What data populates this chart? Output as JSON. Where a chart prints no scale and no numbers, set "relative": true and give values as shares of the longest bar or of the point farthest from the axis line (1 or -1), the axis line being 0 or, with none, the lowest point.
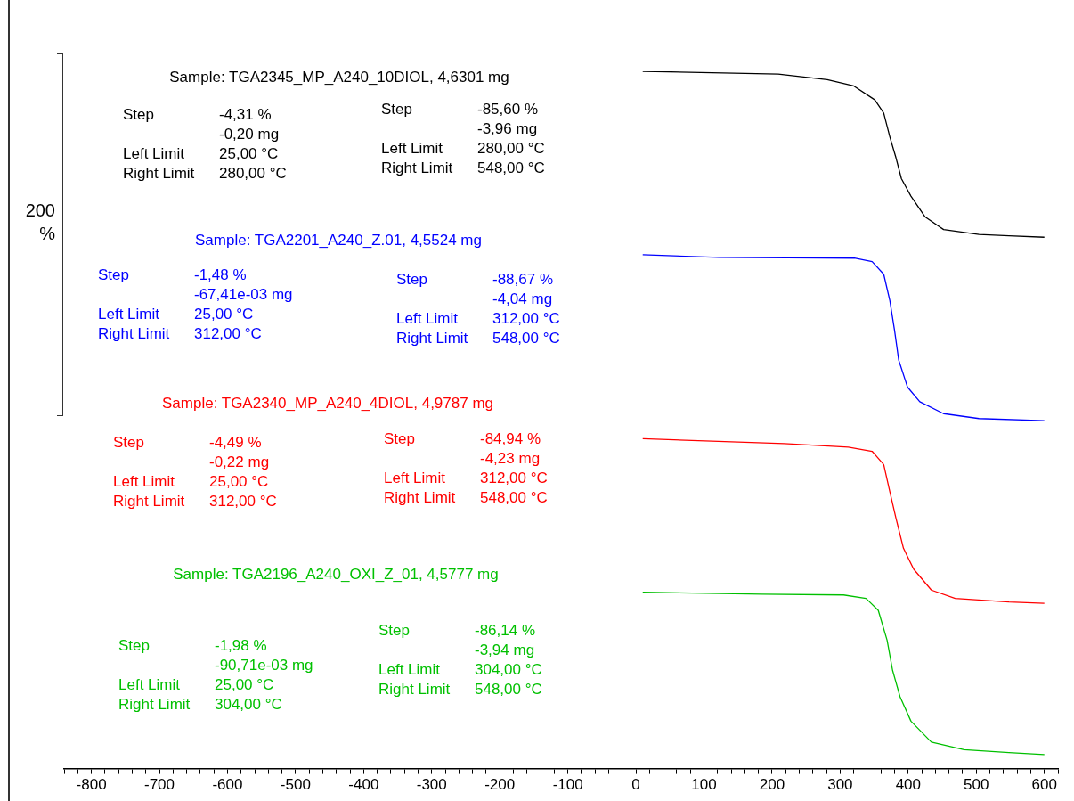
{
  "chart_data": {
    "type": "line",
    "relative": true,
    "grid": false,
    "legend": false,
    "marker": "none",
    "line_style": "solid",
    "xlim": [
      -840,
      620
    ],
    "xticks": [
      {
        "value": -840,
        "label": null
      },
      {
        "value": -820,
        "label": null
      },
      -800,
      {
        "value": -780,
        "label": null
      },
      {
        "value": -760,
        "label": null
      },
      {
        "value": -740,
        "label": null
      },
      {
        "value": -720,
        "label": null
      },
      -700,
      {
        "value": -680,
        "label": null
      },
      {
        "value": -660,
        "label": null
      },
      {
        "value": -640,
        "label": null
      },
      {
        "value": -620,
        "label": null
      },
      -600,
      {
        "value": -580,
        "label": null
      },
      {
        "value": -560,
        "label": null
      },
      {
        "value": -540,
        "label": null
      },
      {
        "value": -520,
        "label": null
      },
      -500,
      {
        "value": -480,
        "label": null
      },
      {
        "value": -460,
        "label": null
      },
      {
        "value": -440,
        "label": null
      },
      {
        "value": -420,
        "label": null
      },
      -400,
      {
        "value": -380,
        "label": null
      },
      {
        "value": -360,
        "label": null
      },
      {
        "value": -340,
        "label": null
      },
      {
        "value": -320,
        "label": null
      },
      -300,
      {
        "value": -280,
        "label": null
      },
      {
        "value": -260,
        "label": null
      },
      {
        "value": -240,
        "label": null
      },
      {
        "value": -220,
        "label": null
      },
      -200,
      {
        "value": -180,
        "label": null
      },
      {
        "value": -160,
        "label": null
      },
      {
        "value": -140,
        "label": null
      },
      {
        "value": -120,
        "label": null
      },
      -100,
      {
        "value": -80,
        "label": null
      },
      {
        "value": -60,
        "label": null
      },
      {
        "value": -40,
        "label": null
      },
      {
        "value": -20,
        "label": null
      },
      0,
      {
        "value": 20,
        "label": null
      },
      {
        "value": 40,
        "label": null
      },
      {
        "value": 60,
        "label": null
      },
      {
        "value": 80,
        "label": null
      },
      100,
      {
        "value": 120,
        "label": null
      },
      {
        "value": 140,
        "label": null
      },
      {
        "value": 160,
        "label": null
      },
      {
        "value": 180,
        "label": null
      },
      200,
      {
        "value": 220,
        "label": null
      },
      {
        "value": 240,
        "label": null
      },
      {
        "value": 260,
        "label": null
      },
      {
        "value": 280,
        "label": null
      },
      300,
      {
        "value": 320,
        "label": null
      },
      {
        "value": 340,
        "label": null
      },
      {
        "value": 360,
        "label": null
      },
      {
        "value": 380,
        "label": null
      },
      400,
      {
        "value": 420,
        "label": null
      },
      {
        "value": 440,
        "label": null
      },
      {
        "value": 460,
        "label": null
      },
      {
        "value": 480,
        "label": null
      },
      500,
      {
        "value": 520,
        "label": null
      },
      {
        "value": 540,
        "label": null
      },
      {
        "value": 560,
        "label": null
      },
      {
        "value": 580,
        "label": null
      },
      600,
      {
        "value": 620,
        "label": null
      }
    ],
    "series": [
      {
        "name": "Sample: TGA2345_MP_A240_10DIOL, 4,6301 mg",
        "color": "#000000",
        "x": [
          10,
          209,
          281,
          320,
          351,
          364,
          373,
          382,
          390,
          404,
          425,
          452,
          504,
          548,
          600
        ],
        "values": [
          1.0,
          0.996,
          0.988,
          0.979,
          0.959,
          0.94,
          0.906,
          0.876,
          0.846,
          0.821,
          0.791,
          0.773,
          0.766,
          0.764,
          0.762
        ]
      },
      {
        "name": "Sample: TGA2201_A240_Z.01, 4,5524 mg",
        "color": "#0000ff",
        "x": [
          10,
          122,
          321,
          347,
          364,
          373,
          380,
          386,
          399,
          417,
          452,
          504,
          600
        ],
        "values": [
          0.737,
          0.733,
          0.732,
          0.727,
          0.709,
          0.671,
          0.628,
          0.586,
          0.547,
          0.526,
          0.509,
          0.502,
          0.499
        ]
      },
      {
        "name": "Sample: TGA2340_MP_A240_4DIOL, 4,9787 mg",
        "color": "#ff0000",
        "x": [
          10,
          218,
          312,
          347,
          364,
          373,
          382,
          393,
          408,
          434,
          469,
          548,
          600
        ],
        "values": [
          0.473,
          0.466,
          0.461,
          0.455,
          0.436,
          0.397,
          0.359,
          0.316,
          0.286,
          0.256,
          0.244,
          0.239,
          0.237
        ]
      },
      {
        "name": "Sample: TGA2196_A240_OXI_Z_01, 4,5777 mg",
        "color": "#00c000",
        "x": [
          10,
          185,
          305,
          338,
          356,
          369,
          377,
          388,
          404,
          434,
          482,
          548,
          600
        ],
        "values": [
          0.253,
          0.25,
          0.249,
          0.244,
          0.227,
          0.184,
          0.141,
          0.103,
          0.068,
          0.038,
          0.027,
          0.023,
          0.02
        ]
      }
    ],
    "annotations": [
      "200 %",
      "Step\t-4,31 %\n\t-0,20 mg\nLeft Limit\t25,00 °C\nRight Limit\t280,00 °C",
      "Step\t-85,60 %\n\t-3,96 mg\nLeft Limit\t280,00 °C\nRight Limit\t548,00 °C",
      "Step\t-1,48 %\n\t-67,41e-03 mg\nLeft Limit\t25,00 °C\nRight Limit\t312,00 °C",
      "Step\t-88,67 %\n\t-4,04 mg\nLeft Limit\t312,00 °C\nRight Limit\t548,00 °C",
      "Step\t-4,49 %\n\t-0,22 mg\nLeft Limit\t25,00 °C\nRight Limit\t312,00 °C",
      "Step\t-84,94 %\n\t-4,23 mg\nLeft Limit\t312,00 °C\nRight Limit\t548,00 °C",
      "Step\t-1,98 %\n\t-90,71e-03 mg\nLeft Limit\t25,00 °C\nRight Limit\t304,00 °C",
      "Step\t-86,14 %\n\t-3,94 mg\nLeft Limit\t304,00 °C\nRight Limit\t548,00 °C"
    ]
  }
}
